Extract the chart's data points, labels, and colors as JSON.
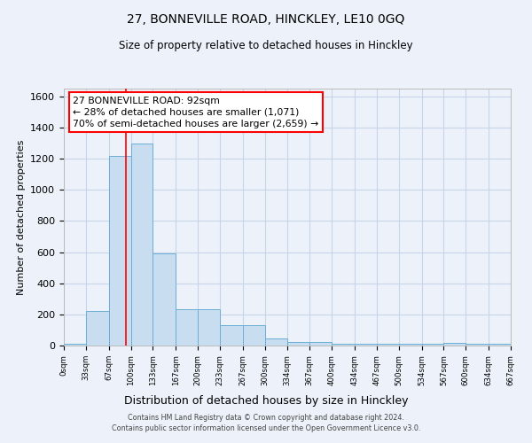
{
  "title": "27, BONNEVILLE ROAD, HINCKLEY, LE10 0GQ",
  "subtitle": "Size of property relative to detached houses in Hinckley",
  "xlabel": "Distribution of detached houses by size in Hinckley",
  "ylabel": "Number of detached properties",
  "footer_line1": "Contains HM Land Registry data © Crown copyright and database right 2024.",
  "footer_line2": "Contains public sector information licensed under the Open Government Licence v3.0.",
  "bar_color": "#c9ddf0",
  "bar_edge_color": "#6baed6",
  "grid_color": "#c8d4e8",
  "background_color": "#edf2fa",
  "red_line_x": 92,
  "annotation_text": "27 BONNEVILLE ROAD: 92sqm\n← 28% of detached houses are smaller (1,071)\n70% of semi-detached houses are larger (2,659) →",
  "bin_edges": [
    0,
    33,
    67,
    100,
    133,
    167,
    200,
    233,
    267,
    300,
    334,
    367,
    400,
    434,
    467,
    500,
    534,
    567,
    600,
    634,
    667
  ],
  "bin_heights": [
    10,
    220,
    1220,
    1295,
    590,
    235,
    235,
    130,
    130,
    45,
    25,
    22,
    10,
    10,
    10,
    10,
    10,
    18,
    10,
    10
  ],
  "ylim": [
    0,
    1650
  ],
  "xlim": [
    0,
    667
  ],
  "ytick_values": [
    0,
    200,
    400,
    600,
    800,
    1000,
    1200,
    1400,
    1600
  ],
  "xtick_labels": [
    "0sqm",
    "33sqm",
    "67sqm",
    "100sqm",
    "133sqm",
    "167sqm",
    "200sqm",
    "233sqm",
    "267sqm",
    "300sqm",
    "334sqm",
    "367sqm",
    "400sqm",
    "434sqm",
    "467sqm",
    "500sqm",
    "534sqm",
    "567sqm",
    "600sqm",
    "634sqm",
    "667sqm"
  ],
  "xtick_positions": [
    0,
    33,
    67,
    100,
    133,
    167,
    200,
    233,
    267,
    300,
    334,
    367,
    400,
    434,
    467,
    500,
    534,
    567,
    600,
    634,
    667
  ]
}
